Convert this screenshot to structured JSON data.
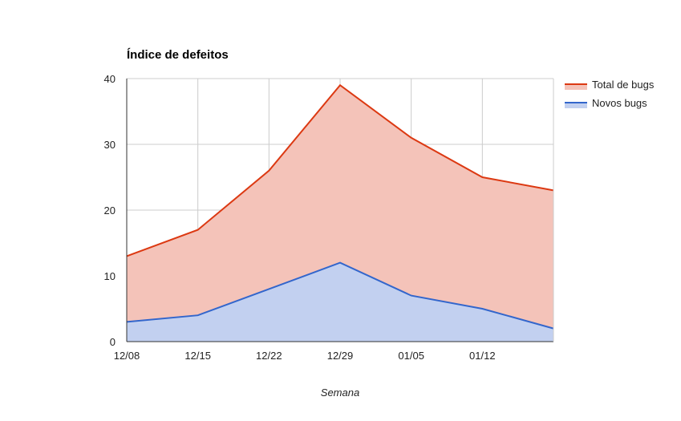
{
  "chart_data": {
    "type": "area",
    "title": "Índice de defeitos",
    "xlabel": "Semana",
    "ylabel": "",
    "x": [
      "12/08",
      "12/15",
      "12/22",
      "12/29",
      "01/05",
      "01/12",
      ""
    ],
    "x_tick_labels": [
      "12/08",
      "12/15",
      "12/22",
      "12/29",
      "01/05",
      "01/12"
    ],
    "y_ticks": [
      0,
      10,
      20,
      30,
      40
    ],
    "ylim": [
      0,
      40
    ],
    "grid": true,
    "legend_position": "right",
    "series": [
      {
        "name": "Total de bugs",
        "values": [
          13,
          17,
          26,
          39,
          31,
          25,
          23
        ],
        "color": "#dc3912",
        "fill": "#f4c3b9"
      },
      {
        "name": "Novos bugs",
        "values": [
          3,
          4,
          8,
          12,
          7,
          5,
          2
        ],
        "color": "#3366cc",
        "fill": "#c2d0f0"
      }
    ]
  }
}
